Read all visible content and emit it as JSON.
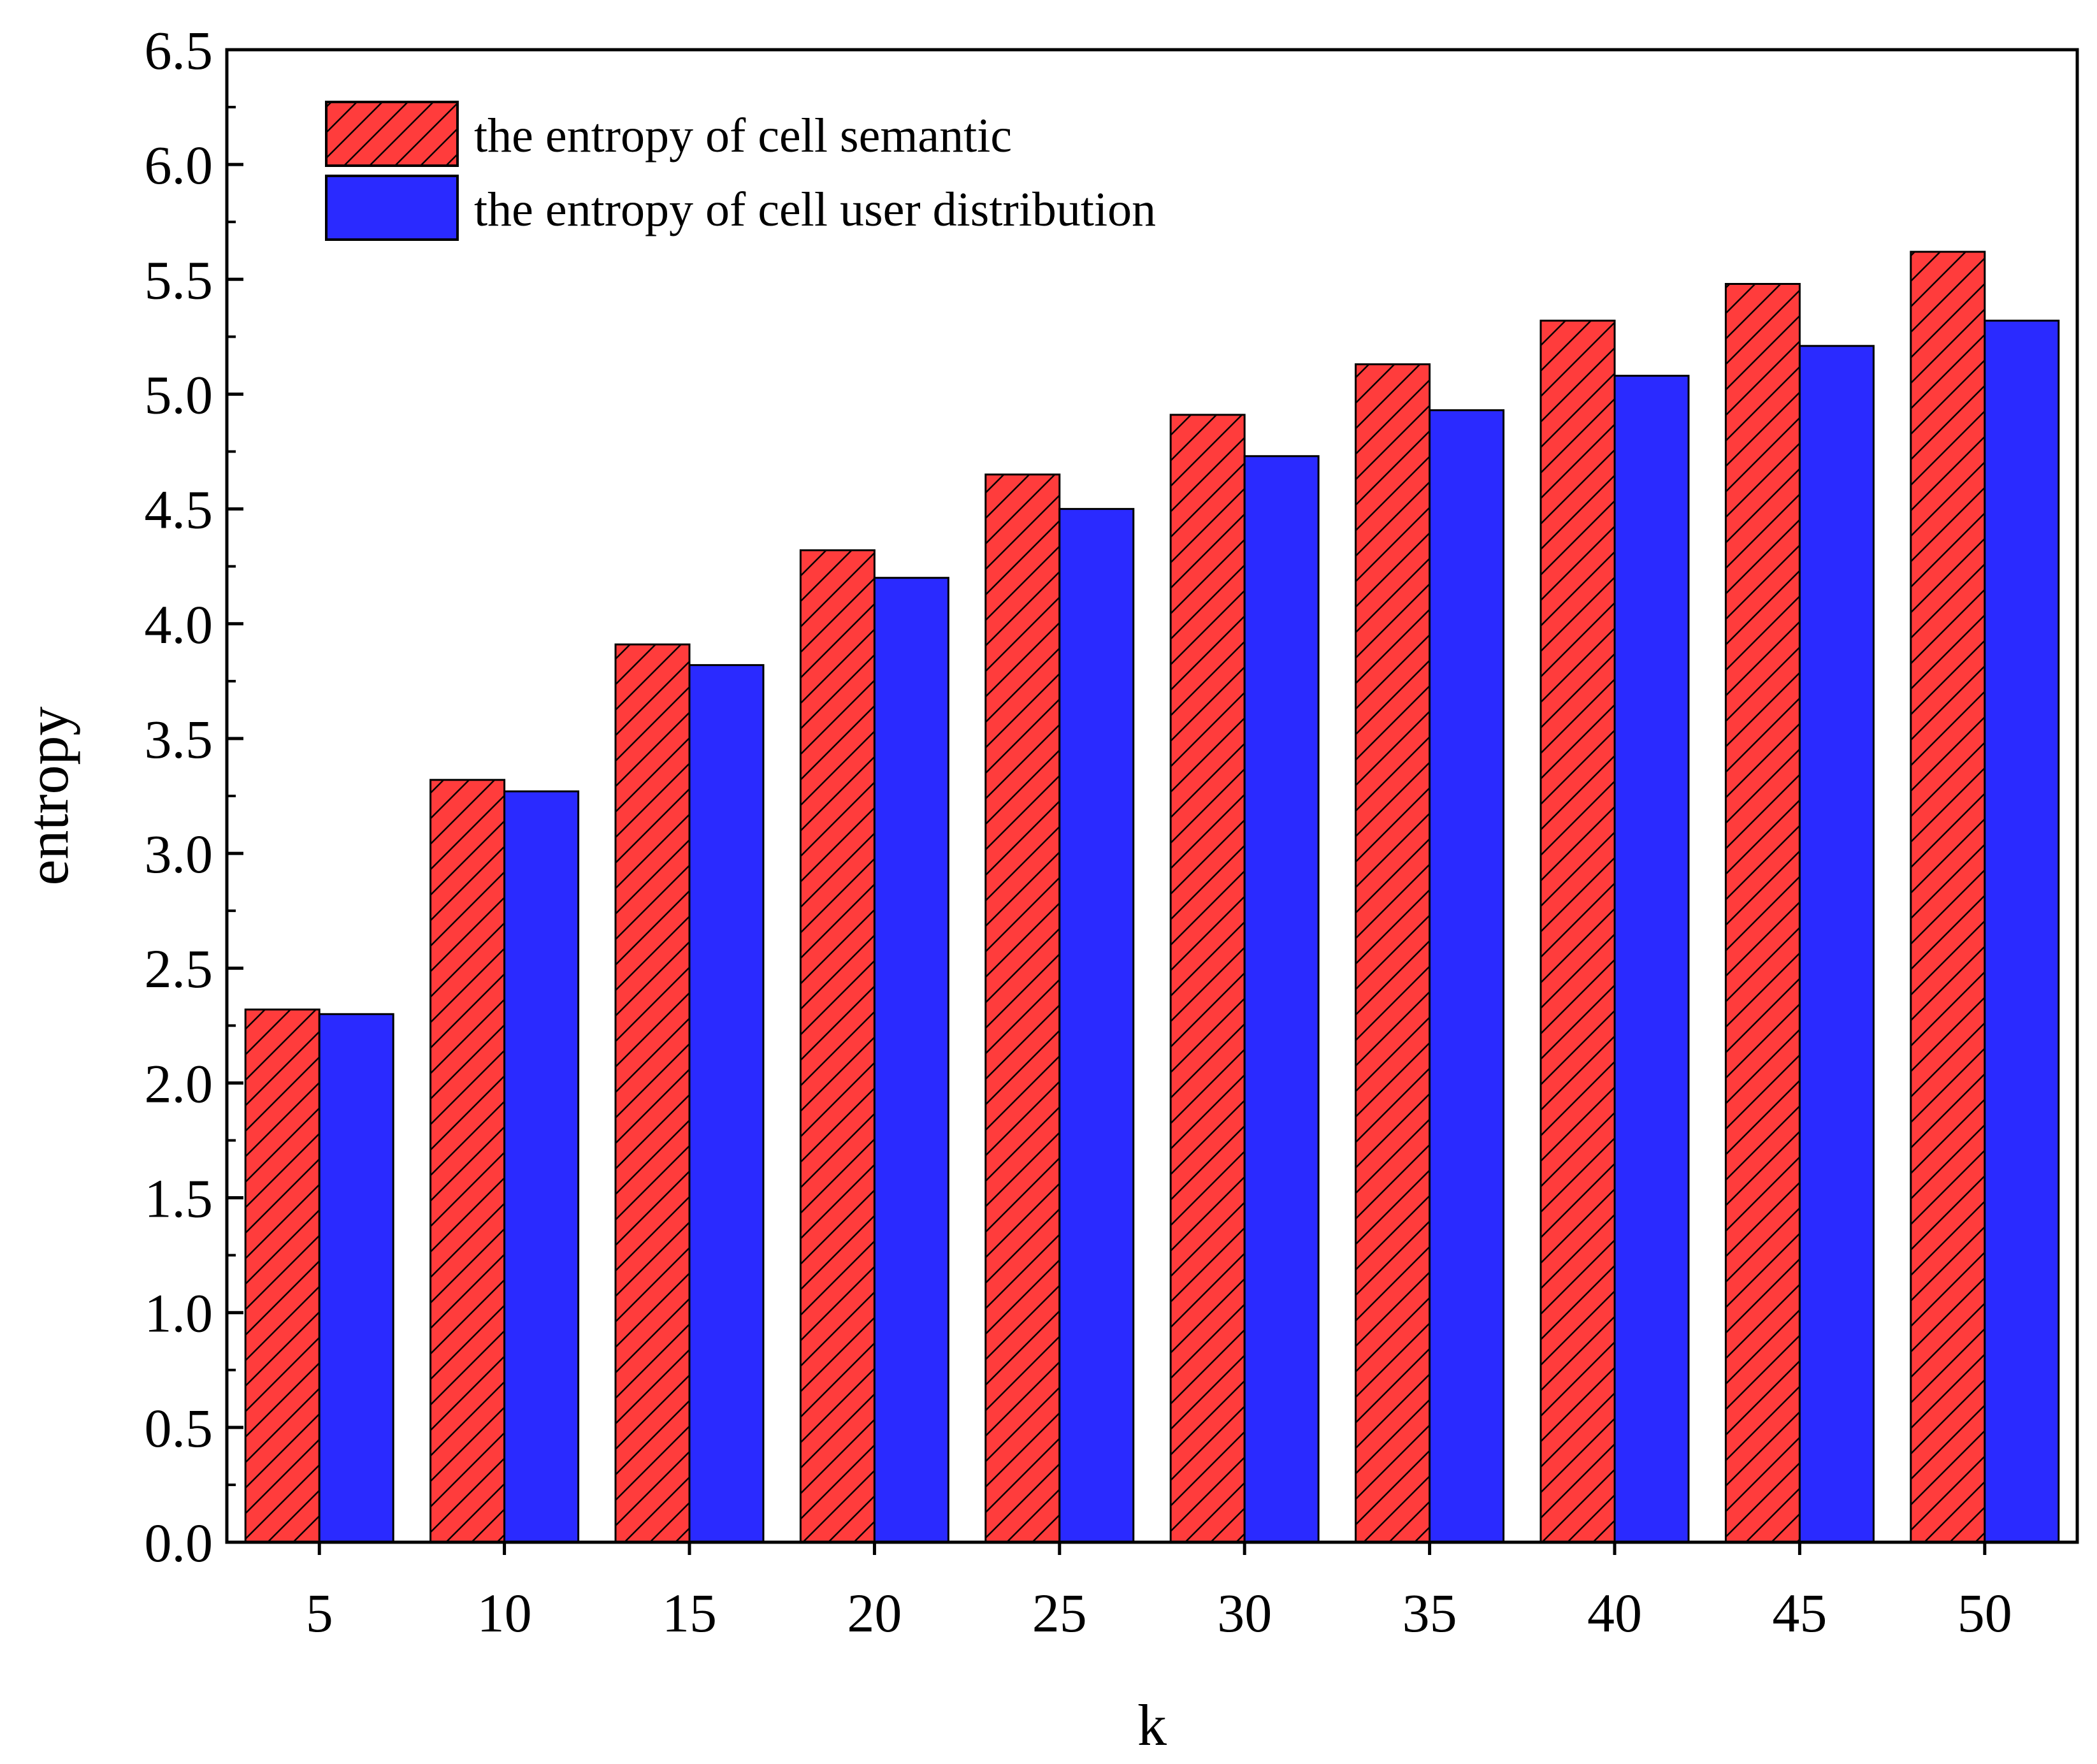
{
  "chart_data": {
    "type": "bar",
    "title": "",
    "xlabel": "k",
    "ylabel": "entropy",
    "categories": [
      "5",
      "10",
      "15",
      "20",
      "25",
      "30",
      "35",
      "40",
      "45",
      "50"
    ],
    "series": [
      {
        "name": "the entropy of cell semantic",
        "color": "#ff3c3c",
        "pattern": "hatched",
        "values": [
          2.32,
          3.32,
          3.91,
          4.32,
          4.65,
          4.91,
          5.13,
          5.32,
          5.48,
          5.62
        ]
      },
      {
        "name": "the entropy of cell user distribution",
        "color": "#2a2aff",
        "pattern": "solid",
        "values": [
          2.3,
          3.27,
          3.82,
          4.2,
          4.5,
          4.73,
          4.93,
          5.08,
          5.21,
          5.32
        ]
      }
    ],
    "ylim": [
      0,
      6.5
    ],
    "yticks": [
      "0.0",
      "0.5",
      "1.0",
      "1.5",
      "2.0",
      "2.5",
      "3.0",
      "3.5",
      "4.0",
      "4.5",
      "5.0",
      "5.5",
      "6.0",
      "6.5"
    ],
    "grid": false,
    "legend_position": "top-left"
  }
}
